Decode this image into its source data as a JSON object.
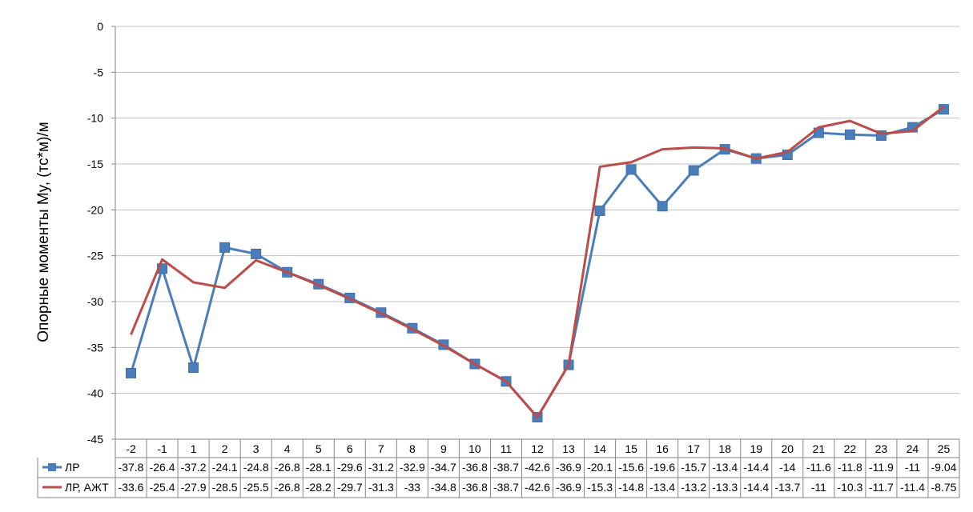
{
  "chart_data": {
    "type": "line",
    "title": "",
    "xlabel": "",
    "ylabel": "Опорные моменты My, (тс*м)/м",
    "ylim": [
      -45,
      0
    ],
    "y_ticks": [
      "0",
      "-5",
      "-10",
      "-15",
      "-20",
      "-25",
      "-30",
      "-35",
      "-40",
      "-45"
    ],
    "grid": true,
    "legend": "data-table-below",
    "categories": [
      "-2",
      "-1",
      "1",
      "2",
      "3",
      "4",
      "5",
      "6",
      "7",
      "8",
      "9",
      "10",
      "11",
      "12",
      "13",
      "14",
      "15",
      "16",
      "17",
      "18",
      "19",
      "20",
      "21",
      "22",
      "23",
      "24",
      "25"
    ],
    "series": [
      {
        "name": "ЛР",
        "color": "#4a7ebb",
        "marker": "square",
        "values": [
          -37.8,
          -26.4,
          -37.2,
          -24.1,
          -24.8,
          -26.8,
          -28.1,
          -29.6,
          -31.2,
          -32.9,
          -34.7,
          -36.8,
          -38.7,
          -42.6,
          -36.9,
          -20.1,
          -15.6,
          -19.6,
          -15.7,
          -13.4,
          -14.4,
          -14,
          -11.6,
          -11.8,
          -11.9,
          -11,
          -9.04
        ],
        "labels": [
          "-37.8",
          "-26.4",
          "-37.2",
          "-24.1",
          "-24.8",
          "-26.8",
          "-28.1",
          "-29.6",
          "-31.2",
          "-32.9",
          "-34.7",
          "-36.8",
          "-38.7",
          "-42.6",
          "-36.9",
          "-20.1",
          "-15.6",
          "-19.6",
          "-15.7",
          "-13.4",
          "-14.4",
          "-14",
          "-11.6",
          "-11.8",
          "-11.9",
          "-11",
          "-9.04"
        ]
      },
      {
        "name": "ЛР, АЖТ",
        "color": "#be4b48",
        "marker": "none",
        "values": [
          -33.6,
          -25.4,
          -27.9,
          -28.5,
          -25.5,
          -26.8,
          -28.2,
          -29.7,
          -31.3,
          -33,
          -34.8,
          -36.8,
          -38.7,
          -42.6,
          -36.9,
          -15.3,
          -14.8,
          -13.4,
          -13.2,
          -13.3,
          -14.4,
          -13.7,
          -11,
          -10.3,
          -11.7,
          -11.4,
          -8.75
        ],
        "labels": [
          "-33.6",
          "-25.4",
          "-27.9",
          "-28.5",
          "-25.5",
          "-26.8",
          "-28.2",
          "-29.7",
          "-31.3",
          "-33",
          "-34.8",
          "-36.8",
          "-38.7",
          "-42.6",
          "-36.9",
          "-15.3",
          "-14.8",
          "-13.4",
          "-13.2",
          "-13.3",
          "-14.4",
          "-13.7",
          "-11",
          "-10.3",
          "-11.7",
          "-11.4",
          "-8.75"
        ]
      }
    ]
  }
}
